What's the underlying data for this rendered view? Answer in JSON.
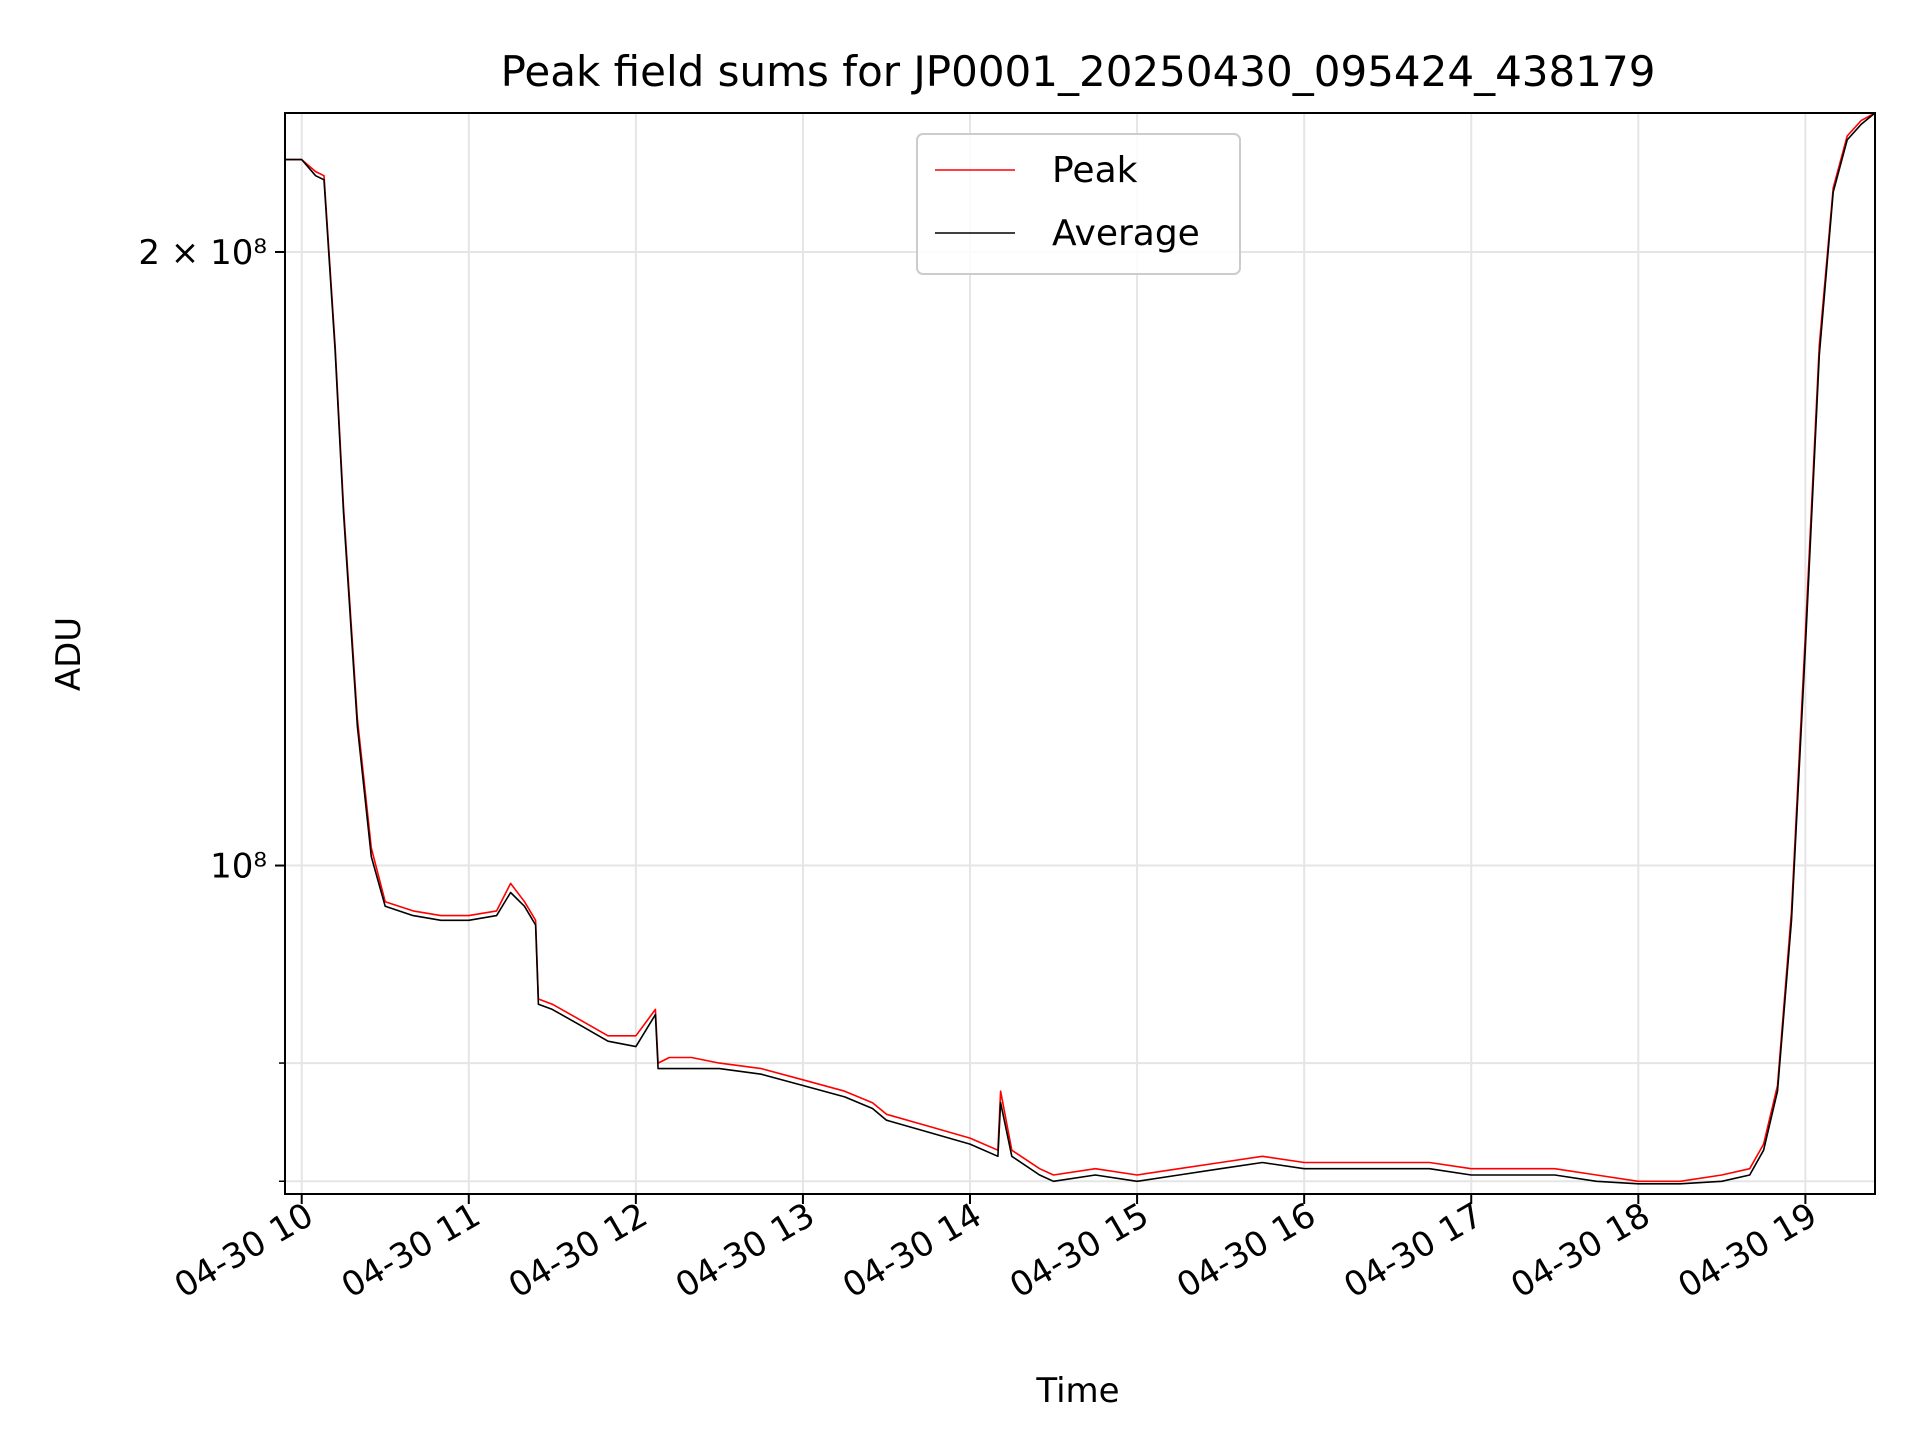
{
  "chart_data": {
    "type": "line",
    "title": "Peak field sums for JP0001_20250430_095424_438179",
    "xlabel": "Time",
    "ylabel": "ADU",
    "y_scale": "log",
    "grid": true,
    "legend_position": "top-center",
    "xlim": [
      "04-30 09:54",
      "04-30 19:25"
    ],
    "ylim": [
      69000000,
      234000000
    ],
    "x_ticks": [
      "04-30 10",
      "04-30 11",
      "04-30 12",
      "04-30 13",
      "04-30 14",
      "04-30 15",
      "04-30 16",
      "04-30 17",
      "04-30 18",
      "04-30 19"
    ],
    "y_major_ticks": [
      {
        "value": 100000000,
        "label": "10⁸"
      },
      {
        "value": 200000000,
        "label": "2 × 10⁸"
      }
    ],
    "y_minor_ticks": [
      70000000,
      80000000
    ],
    "x": [
      "04-30 09:54",
      "04-30 10:00",
      "04-30 10:05",
      "04-30 10:08",
      "04-30 10:12",
      "04-30 10:15",
      "04-30 10:20",
      "04-30 10:25",
      "04-30 10:30",
      "04-30 10:40",
      "04-30 10:50",
      "04-30 11:00",
      "04-30 11:10",
      "04-30 11:15",
      "04-30 11:20",
      "04-30 11:24",
      "04-30 11:25",
      "04-30 11:30",
      "04-30 11:40",
      "04-30 11:50",
      "04-30 12:00",
      "04-30 12:07",
      "04-30 12:08",
      "04-30 12:12",
      "04-30 12:15",
      "04-30 12:20",
      "04-30 12:30",
      "04-30 12:45",
      "04-30 13:00",
      "04-30 13:15",
      "04-30 13:25",
      "04-30 13:30",
      "04-30 13:45",
      "04-30 14:00",
      "04-30 14:10",
      "04-30 14:11",
      "04-30 14:15",
      "04-30 14:25",
      "04-30 14:30",
      "04-30 14:45",
      "04-30 15:00",
      "04-30 15:15",
      "04-30 15:30",
      "04-30 15:45",
      "04-30 16:00",
      "04-30 16:15",
      "04-30 16:30",
      "04-30 16:45",
      "04-30 17:00",
      "04-30 17:15",
      "04-30 17:30",
      "04-30 17:45",
      "04-30 18:00",
      "04-30 18:15",
      "04-30 18:30",
      "04-30 18:40",
      "04-30 18:45",
      "04-30 18:50",
      "04-30 18:55",
      "04-30 19:00",
      "04-30 19:05",
      "04-30 19:10",
      "04-30 19:15",
      "04-30 19:20",
      "04-30 19:25"
    ],
    "series": [
      {
        "name": "Peak",
        "color": "#ff0000",
        "values": [
          222000000,
          222000000,
          219000000,
          218000000,
          180000000,
          150000000,
          118000000,
          102000000,
          96000000,
          95000000,
          94500000,
          94500000,
          95000000,
          98000000,
          96000000,
          94000000,
          86000000,
          85500000,
          84000000,
          82500000,
          82500000,
          85000000,
          80000000,
          80500000,
          80500000,
          80500000,
          80000000,
          79500000,
          78500000,
          77500000,
          76500000,
          75500000,
          74500000,
          73500000,
          72500000,
          77500000,
          72500000,
          71000000,
          70500000,
          71000000,
          70500000,
          71000000,
          71500000,
          72000000,
          71500000,
          71500000,
          71500000,
          71500000,
          71000000,
          71000000,
          71000000,
          70500000,
          70000000,
          70000000,
          70500000,
          71000000,
          73000000,
          78000000,
          95000000,
          130000000,
          180000000,
          215000000,
          228000000,
          232000000,
          234000000
        ]
      },
      {
        "name": "Average",
        "color": "#000000",
        "values": [
          222000000,
          222000000,
          218000000,
          217000000,
          179000000,
          149000000,
          117000000,
          101000000,
          95500000,
          94500000,
          94000000,
          94000000,
          94500000,
          97000000,
          95500000,
          93500000,
          85500000,
          85000000,
          83500000,
          82000000,
          81500000,
          84500000,
          79500000,
          79500000,
          79500000,
          79500000,
          79500000,
          79000000,
          78000000,
          77000000,
          76000000,
          75000000,
          74000000,
          73000000,
          72000000,
          76500000,
          72000000,
          70500000,
          70000000,
          70500000,
          70000000,
          70500000,
          71000000,
          71500000,
          71000000,
          71000000,
          71000000,
          71000000,
          70500000,
          70500000,
          70500000,
          70000000,
          69800000,
          69800000,
          70000000,
          70500000,
          72500000,
          77500000,
          94000000,
          128000000,
          178000000,
          214000000,
          227000000,
          231000000,
          234000000
        ]
      }
    ]
  }
}
